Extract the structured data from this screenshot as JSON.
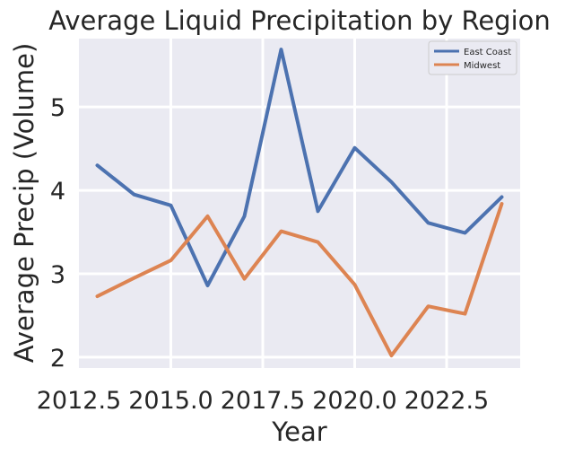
{
  "chart_data": {
    "type": "line",
    "title": "Average Liquid Precipitation by Region",
    "xlabel": "Year",
    "ylabel": "Average Precip (Volume)",
    "x": [
      2013,
      2014,
      2015,
      2016,
      2017,
      2018,
      2019,
      2020,
      2021,
      2022,
      2023,
      2024
    ],
    "xlim": [
      2012.5,
      2024.5
    ],
    "ylim": [
      1.87,
      5.82
    ],
    "xticks": [
      "2012.5",
      "2015.0",
      "2017.5",
      "2020.0",
      "2022.5"
    ],
    "xtick_values": [
      2012.5,
      2015.0,
      2017.5,
      2020.0,
      2022.5
    ],
    "yticks": [
      "2",
      "3",
      "4",
      "5"
    ],
    "ytick_values": [
      2,
      3,
      4,
      5
    ],
    "grid": true,
    "legend_position": "top-right",
    "series": [
      {
        "name": "East Coast",
        "color": "#4c72b0",
        "values": [
          4.3,
          3.95,
          3.82,
          2.86,
          3.69,
          5.69,
          3.75,
          4.51,
          4.1,
          3.61,
          3.49,
          3.92
        ]
      },
      {
        "name": "Midwest",
        "color": "#dd8452",
        "values": [
          2.73,
          2.95,
          3.16,
          3.69,
          2.94,
          3.51,
          3.38,
          2.87,
          2.02,
          2.61,
          2.52,
          3.84
        ]
      }
    ]
  }
}
